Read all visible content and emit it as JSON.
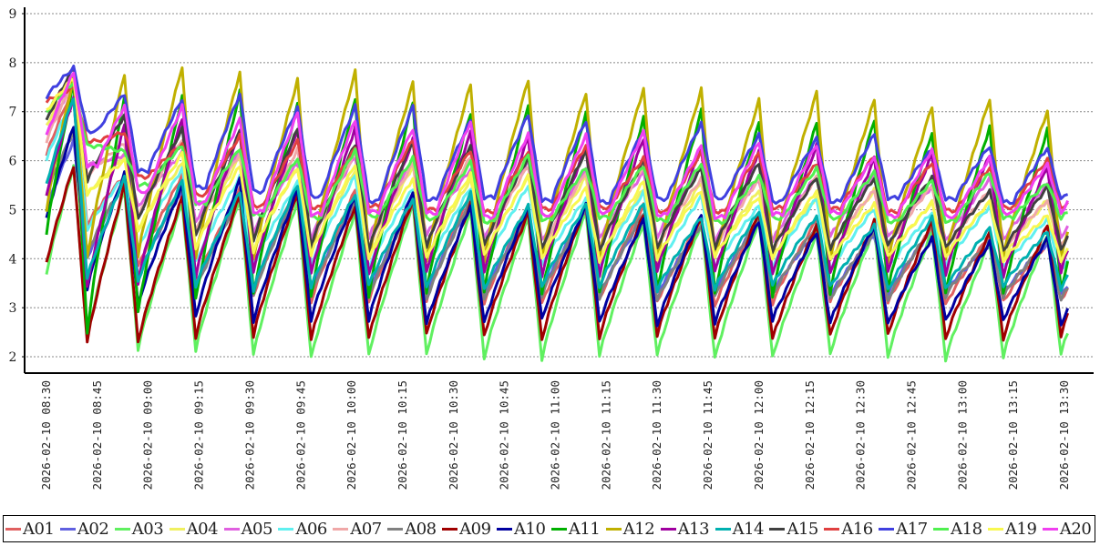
{
  "chart_data": {
    "type": "line",
    "title": "",
    "xlabel": "",
    "ylabel": "",
    "ylim": [
      2,
      9
    ],
    "yticks": [
      "2",
      "3",
      "4",
      "5",
      "6",
      "7",
      "8",
      "9"
    ],
    "grid": "horizontal-dashed",
    "legend_position": "bottom",
    "xticks": [
      "2026-02-10  08:30",
      "2026-02-10  08:45",
      "2026-02-10  09:00",
      "2026-02-10  09:15",
      "2026-02-10  09:30",
      "2026-02-10  09:45",
      "2026-02-10  10:00",
      "2026-02-10  10:15",
      "2026-02-10  10:30",
      "2026-02-10  10:45",
      "2026-02-10  11:00",
      "2026-02-10  11:15",
      "2026-02-10  11:30",
      "2026-02-10  11:45",
      "2026-02-10  12:00",
      "2026-02-10  12:15",
      "2026-02-10  12:30",
      "2026-02-10  12:45",
      "2026-02-10  13:00",
      "2026-02-10  13:15",
      "2026-02-10  13:30"
    ],
    "x_range_minutes_after_0830": [
      0,
      301
    ],
    "cycle": {
      "first_peak_min": 8,
      "first_trough_min": 12,
      "peak_start_min": 23,
      "period_min": 17,
      "cycles": 17,
      "drop_min": 4
    },
    "series_fields": [
      "start",
      "first_peak",
      "first_trough",
      "peak_early",
      "peak_late",
      "trough"
    ],
    "series": [
      {
        "name": "A01",
        "color": "#e06060",
        "params": [
          6.1,
          7.5,
          4.7,
          5.7,
          4.4,
          3.1
        ]
      },
      {
        "name": "A02",
        "color": "#6060e0",
        "params": [
          5.0,
          6.4,
          4.0,
          5.5,
          4.3,
          3.3
        ]
      },
      {
        "name": "A03",
        "color": "#60f060",
        "params": [
          3.7,
          5.9,
          2.4,
          5.3,
          4.4,
          2.0
        ]
      },
      {
        "name": "A04",
        "color": "#f0f060",
        "params": [
          6.7,
          7.7,
          5.3,
          6.1,
          5.1,
          4.0
        ]
      },
      {
        "name": "A05",
        "color": "#e060e0",
        "params": [
          6.5,
          7.6,
          5.9,
          6.2,
          5.5,
          4.4
        ]
      },
      {
        "name": "A06",
        "color": "#60f0f0",
        "params": [
          6.0,
          7.3,
          4.6,
          5.8,
          4.9,
          3.8
        ]
      },
      {
        "name": "A07",
        "color": "#f0a8a8",
        "params": [
          6.4,
          7.6,
          5.7,
          6.4,
          5.3,
          4.2
        ]
      },
      {
        "name": "A08",
        "color": "#808080",
        "params": [
          5.3,
          6.6,
          4.1,
          5.5,
          4.4,
          3.2
        ]
      },
      {
        "name": "A09",
        "color": "#a00000",
        "params": [
          3.9,
          5.9,
          2.3,
          5.4,
          4.6,
          2.4
        ]
      },
      {
        "name": "A10",
        "color": "#0000a0",
        "params": [
          4.8,
          6.7,
          3.4,
          5.7,
          4.3,
          2.7
        ]
      },
      {
        "name": "A11",
        "color": "#00b000",
        "params": [
          4.5,
          7.6,
          2.5,
          7.4,
          6.6,
          3.3
        ]
      },
      {
        "name": "A12",
        "color": "#c0b000",
        "params": [
          5.0,
          7.7,
          4.0,
          7.9,
          7.1,
          4.0
        ]
      },
      {
        "name": "A13",
        "color": "#a000a0",
        "params": [
          5.3,
          7.3,
          3.4,
          6.8,
          6.0,
          3.7
        ]
      },
      {
        "name": "A14",
        "color": "#00b0b0",
        "params": [
          5.5,
          7.3,
          3.6,
          5.6,
          4.6,
          3.4
        ]
      },
      {
        "name": "A15",
        "color": "#404040",
        "params": [
          6.8,
          7.9,
          5.6,
          6.8,
          5.4,
          4.2
        ]
      },
      {
        "name": "A16",
        "color": "#e04040",
        "params": [
          7.2,
          7.5,
          6.4,
          6.5,
          5.9,
          5.0
        ]
      },
      {
        "name": "A17",
        "color": "#4040e0",
        "params": [
          7.3,
          7.9,
          6.6,
          7.4,
          6.2,
          5.2
        ]
      },
      {
        "name": "A18",
        "color": "#50f050",
        "params": [
          7.0,
          7.6,
          6.3,
          6.3,
          5.6,
          4.8
        ]
      },
      {
        "name": "A19",
        "color": "#f8f850",
        "params": [
          7.0,
          7.7,
          5.3,
          6.1,
          5.0,
          4.0
        ]
      },
      {
        "name": "A20",
        "color": "#f040f0",
        "params": [
          6.5,
          7.8,
          5.9,
          7.1,
          6.0,
          4.9
        ]
      }
    ]
  }
}
